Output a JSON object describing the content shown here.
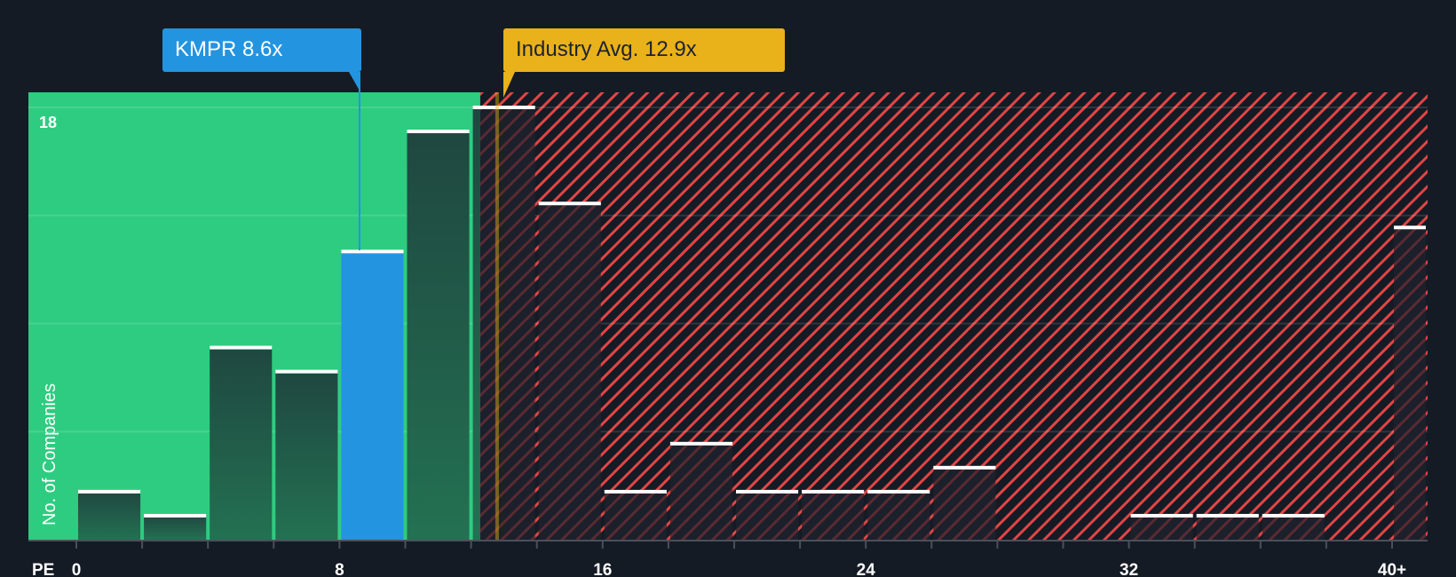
{
  "chart_data": {
    "type": "bar",
    "title": "",
    "xlabel": "PE",
    "ylabel": "No. of Companies",
    "x_tick_labels": [
      "0",
      "8",
      "16",
      "24",
      "32",
      "40+"
    ],
    "y_tick_labels": [
      "18"
    ],
    "ylim": [
      0,
      18
    ],
    "grid": true,
    "bins": [
      "0-2",
      "2-4",
      "4-6",
      "6-8",
      "8-10",
      "10-12",
      "12-14",
      "14-16",
      "16-18",
      "18-20",
      "20-22",
      "22-24",
      "24-26",
      "26-28",
      "28-30",
      "30-32",
      "32-34",
      "34-36",
      "36-38",
      "38-40",
      "40+"
    ],
    "values": [
      2,
      1,
      8,
      7,
      12,
      17,
      18,
      14,
      2,
      4,
      2,
      2,
      2,
      3,
      0,
      0,
      1,
      1,
      1,
      0,
      13
    ],
    "highlight_bin": "8-10",
    "annotations": [
      {
        "label": "KMPR 8.6x",
        "x": 8.6,
        "color": "#2394df"
      },
      {
        "label": "Industry Avg. 12.9x",
        "x": 12.9,
        "color": "#e9b11a"
      }
    ],
    "regions": [
      {
        "from": 0,
        "to": 12.9,
        "meaning": "below industry average",
        "color": "#2ecc80"
      },
      {
        "from": 12.9,
        "to": 41,
        "meaning": "above industry average",
        "color": "#e14545",
        "pattern": "diagonal-stripes"
      }
    ]
  },
  "callouts": {
    "company": "KMPR 8.6x",
    "industry": "Industry Avg. 12.9x"
  },
  "axis": {
    "x_title": "PE",
    "y_title": "No. of Companies",
    "y_max_label": "18"
  },
  "colors": {
    "background": "#151b24",
    "green_region": "#2ecc80",
    "company": "#2394df",
    "industry": "#e9b11a",
    "stripe": "#e14545"
  }
}
